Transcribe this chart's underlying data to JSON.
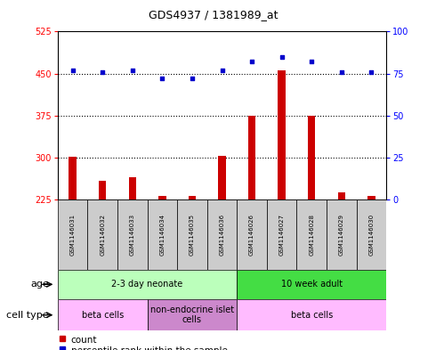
{
  "title": "GDS4937 / 1381989_at",
  "samples": [
    "GSM1146031",
    "GSM1146032",
    "GSM1146033",
    "GSM1146034",
    "GSM1146035",
    "GSM1146036",
    "GSM1146026",
    "GSM1146027",
    "GSM1146028",
    "GSM1146029",
    "GSM1146030"
  ],
  "counts": [
    302,
    258,
    265,
    232,
    232,
    303,
    375,
    455,
    375,
    238,
    232
  ],
  "percentiles": [
    77,
    76,
    77,
    72,
    72,
    77,
    82,
    85,
    82,
    76,
    76
  ],
  "baseline": 225,
  "ylim_left": [
    225,
    525
  ],
  "ylim_right": [
    0,
    100
  ],
  "yticks_left": [
    225,
    300,
    375,
    450,
    525
  ],
  "yticks_right": [
    0,
    25,
    50,
    75,
    100
  ],
  "bar_color": "#cc0000",
  "dot_color": "#0000cc",
  "bar_width": 0.25,
  "age_groups": [
    {
      "label": "2-3 day neonate",
      "start": 0,
      "end": 5,
      "color": "#bbffbb"
    },
    {
      "label": "10 week adult",
      "start": 6,
      "end": 10,
      "color": "#44dd44"
    }
  ],
  "cell_type_groups": [
    {
      "label": "beta cells",
      "start": 0,
      "end": 2,
      "color": "#ffbbff"
    },
    {
      "label": "non-endocrine islet\ncells",
      "start": 3,
      "end": 5,
      "color": "#cc88cc"
    },
    {
      "label": "beta cells",
      "start": 6,
      "end": 10,
      "color": "#ffbbff"
    }
  ],
  "grid_dotted_at": [
    300,
    375,
    450
  ],
  "sample_box_color": "#cccccc",
  "title_fontsize": 9,
  "axis_fontsize": 7,
  "label_fontsize": 7,
  "sample_fontsize": 5
}
